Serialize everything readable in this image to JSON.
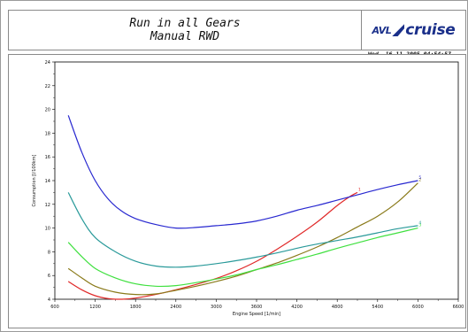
{
  "header": {
    "title_line1": "Run in all Gears",
    "title_line2": "Manual RWD",
    "logo_avl": "AVL",
    "logo_cruise": "cruise",
    "timestamp": "Wed. 16.11.2005 04:54:57"
  },
  "chart_data": {
    "type": "line",
    "title": "",
    "xlabel": "Engine Speed [1/min]",
    "ylabel": "Consumption [l/100km]",
    "xlim": [
      600,
      6600
    ],
    "ylim": [
      4,
      24
    ],
    "xticks": [
      600,
      1200,
      1800,
      2400,
      3000,
      3600,
      4200,
      4800,
      5400,
      6000,
      6600
    ],
    "yticks": [
      4,
      6,
      8,
      10,
      12,
      14,
      16,
      18,
      20,
      22,
      24
    ],
    "grid": false,
    "series": [
      {
        "name": "1",
        "color": "#e02828",
        "x": [
          800,
          1000,
          1200,
          1400,
          1600,
          1800,
          2100,
          2400,
          2700,
          3000,
          3300,
          3600,
          3900,
          4200,
          4500,
          4800,
          5000,
          5100
        ],
        "y": [
          5.5,
          4.8,
          4.3,
          4.05,
          4.0,
          4.1,
          4.4,
          4.8,
          5.25,
          5.75,
          6.4,
          7.2,
          8.2,
          9.3,
          10.5,
          11.9,
          12.7,
          13.0
        ]
      },
      {
        "name": "2",
        "color": "#8a7a1a",
        "x": [
          800,
          1000,
          1200,
          1500,
          1800,
          2100,
          2400,
          2700,
          3000,
          3300,
          3600,
          3900,
          4200,
          4500,
          4800,
          5100,
          5400,
          5700,
          6000
        ],
        "y": [
          6.6,
          5.8,
          5.1,
          4.6,
          4.4,
          4.45,
          4.75,
          5.1,
          5.5,
          5.95,
          6.5,
          7.05,
          7.7,
          8.4,
          9.2,
          10.1,
          11.0,
          12.2,
          13.8
        ]
      },
      {
        "name": "3",
        "color": "#40e040",
        "x": [
          800,
          1000,
          1200,
          1500,
          1800,
          2100,
          2400,
          2700,
          3000,
          3300,
          3600,
          3900,
          4200,
          4500,
          4800,
          5100,
          5400,
          5700,
          6000
        ],
        "y": [
          8.8,
          7.6,
          6.6,
          5.8,
          5.3,
          5.1,
          5.15,
          5.4,
          5.7,
          6.05,
          6.5,
          6.9,
          7.35,
          7.8,
          8.3,
          8.75,
          9.2,
          9.6,
          10.0
        ]
      },
      {
        "name": "4",
        "color": "#2a9a9a",
        "x": [
          800,
          1000,
          1200,
          1500,
          1800,
          2100,
          2400,
          2700,
          3000,
          3300,
          3600,
          3900,
          4200,
          4500,
          4800,
          5100,
          5400,
          5700,
          6000
        ],
        "y": [
          13.0,
          10.8,
          9.2,
          8.0,
          7.2,
          6.8,
          6.7,
          6.8,
          7.0,
          7.25,
          7.55,
          7.9,
          8.3,
          8.65,
          8.95,
          9.25,
          9.6,
          9.95,
          10.2
        ]
      },
      {
        "name": "5",
        "color": "#2828d0",
        "x": [
          800,
          1000,
          1200,
          1400,
          1600,
          1800,
          2100,
          2400,
          2700,
          3000,
          3300,
          3600,
          3900,
          4200,
          4500,
          4800,
          5100,
          5400,
          5700,
          6000
        ],
        "y": [
          19.5,
          16.4,
          14.0,
          12.4,
          11.4,
          10.8,
          10.3,
          10.0,
          10.05,
          10.2,
          10.35,
          10.6,
          11.0,
          11.5,
          11.9,
          12.35,
          12.8,
          13.25,
          13.65,
          14.0
        ]
      }
    ]
  }
}
